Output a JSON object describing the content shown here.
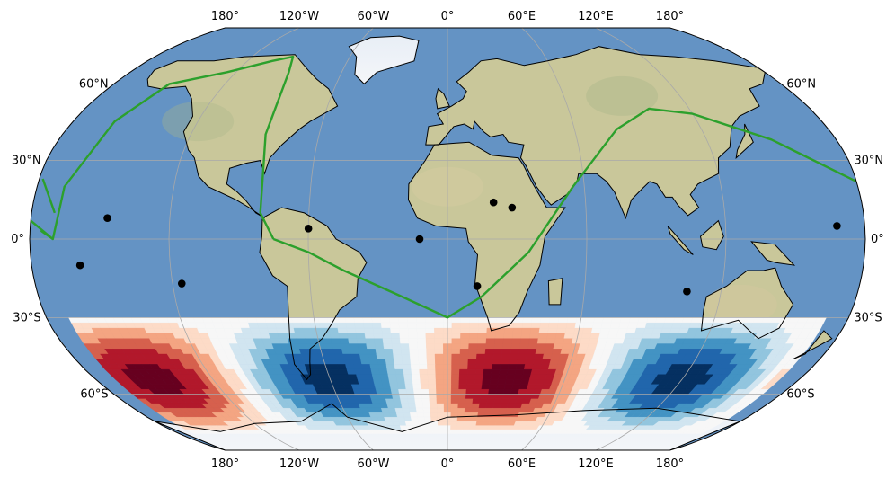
{
  "map": {
    "projection": "robinson",
    "central_longitude": 0,
    "background": "stock-relief-image",
    "ocean_color": "#5f8fc0",
    "land_color": "#cfcba0",
    "coastline_color": "#000000",
    "gridline_color": "#a9a9a9",
    "top_lon_labels": [
      "180°",
      "120°W",
      "60°W",
      "0°",
      "60°E",
      "120°E",
      "180°"
    ],
    "bottom_lon_labels": [
      "180°",
      "120°W",
      "60°W",
      "0°",
      "60°E",
      "120°E",
      "180°"
    ],
    "left_lat_labels": [
      "60°N",
      "30°N",
      "0°",
      "30°S",
      "60°S"
    ],
    "right_lat_labels": [
      "60°N",
      "30°N",
      "0°",
      "30°S",
      "60°S"
    ],
    "track": {
      "color": "#2ca02c",
      "type": "great-circle path",
      "vertices": [
        {
          "lon": -75,
          "lat": 0
        },
        {
          "lon": -70,
          "lat": 75
        },
        {
          "lon": -100,
          "lat": 70
        },
        {
          "lon": -150,
          "lat": 60
        },
        {
          "lon": -170,
          "lat": 0
        },
        {
          "lon": -220,
          "lat": 10
        }
      ],
      "note_dateline_continuation": [
        {
          "lon": 180,
          "lat": 22
        },
        {
          "lon": 90,
          "lat": 50
        },
        {
          "lon": 0,
          "lat": -30
        },
        {
          "lon": -75,
          "lat": 0
        }
      ]
    },
    "points": {
      "color": "#000000",
      "lonlat": [
        [
          -147,
          8
        ],
        [
          -159,
          -10
        ],
        [
          -116,
          -17
        ],
        [
          -60,
          4
        ],
        [
          -12,
          0
        ],
        [
          20,
          14
        ],
        [
          28,
          12
        ],
        [
          13,
          -18
        ],
        [
          105,
          -20
        ],
        [
          168,
          5
        ]
      ]
    },
    "field": {
      "colormap": "RdBu_r",
      "lat_range": [
        -30,
        -78
      ],
      "description": "sinusoidal anomaly pattern, wavenumber 2 in longitude",
      "centers": [
        {
          "lon": -150,
          "lat": -42,
          "sign": 1
        },
        {
          "lon": -60,
          "lat": -42,
          "sign": -1
        },
        {
          "lon": 30,
          "lat": -42,
          "sign": 1
        },
        {
          "lon": 120,
          "lat": -42,
          "sign": -1
        },
        {
          "lon": -150,
          "lat": -66,
          "sign": -1
        },
        {
          "lon": -60,
          "lat": -66,
          "sign": 1
        },
        {
          "lon": 30,
          "lat": -66,
          "sign": -1
        },
        {
          "lon": 120,
          "lat": -66,
          "sign": 1
        }
      ]
    }
  }
}
